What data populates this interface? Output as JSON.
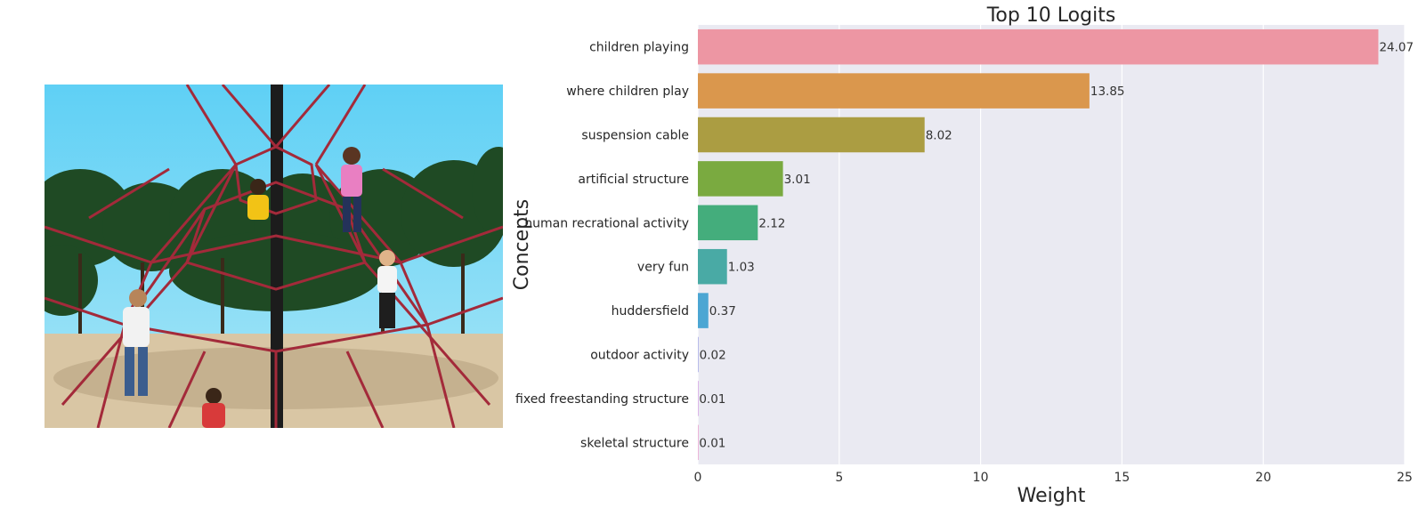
{
  "chart_data": {
    "type": "bar",
    "orientation": "horizontal",
    "title": "Top 10 Logits",
    "xlabel": "Weight",
    "ylabel": "Concepts",
    "xlim": [
      0,
      25
    ],
    "xticks": [
      0,
      5,
      10,
      15,
      20,
      25
    ],
    "grid": true,
    "categories": [
      "children playing",
      "where children play",
      "suspension cable",
      "artificial structure",
      "human recrational activity",
      "very fun",
      "huddersfield",
      "outdoor activity",
      "fixed freestanding structure",
      "skeletal structure"
    ],
    "values": [
      24.07,
      13.85,
      8.02,
      3.01,
      2.12,
      1.03,
      0.37,
      0.02,
      0.01,
      0.01
    ],
    "value_labels": [
      "24.07",
      "13.85",
      "8.02",
      "3.01",
      "2.12",
      "1.03",
      "0.37",
      "0.02",
      "0.01",
      "0.01"
    ],
    "colors": [
      "#ed96a3",
      "#da974d",
      "#ab9d42",
      "#7aaa40",
      "#44ad7c",
      "#49aaa5",
      "#4ca6d3",
      "#9b9ee4",
      "#cf92e2",
      "#eb8fc9"
    ],
    "background_color": "#eaeaf2"
  },
  "image": {
    "subject": "children-on-rope-playground-structure"
  }
}
